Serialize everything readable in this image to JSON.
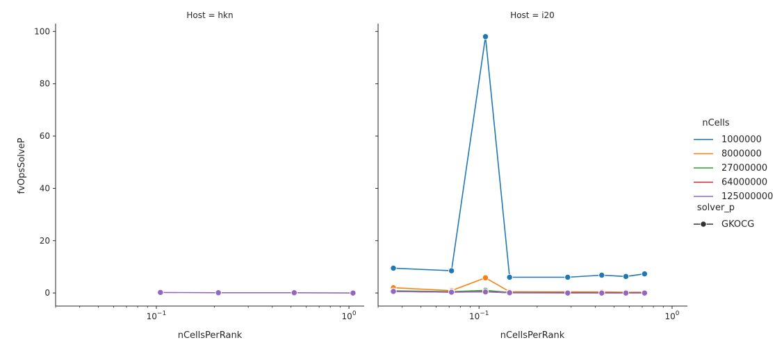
{
  "y_axis_label": "fvOpsSolveP",
  "legend": {
    "hue_title": "nCells",
    "style_title": "solver_p",
    "style_entry": "GKOCG"
  },
  "colors": {
    "1000000": "#1f77b4",
    "8000000": "#ff7f0e",
    "27000000": "#2ca02c",
    "64000000": "#d62728",
    "125000000": "#9467bd"
  },
  "chart_data": [
    {
      "type": "line",
      "title": "Host = hkn",
      "xlabel": "nCellsPerRank",
      "ylabel": "fvOpsSolveP",
      "x_scale": "log",
      "xlim": [
        0.03,
        1.2
      ],
      "ylim": [
        -5,
        103
      ],
      "x_ticks": [
        "10^-1",
        "10^0"
      ],
      "y_ticks": [
        0,
        20,
        40,
        60,
        80,
        100
      ],
      "series": [
        {
          "name": "125000000",
          "x": [
            0.105,
            0.21,
            0.52,
            1.05
          ],
          "y": [
            0.2,
            0.1,
            0.1,
            0.0
          ]
        }
      ]
    },
    {
      "type": "line",
      "title": "Host = i20",
      "xlabel": "nCellsPerRank",
      "ylabel": "fvOpsSolveP",
      "x_scale": "log",
      "xlim": [
        0.03,
        1.2
      ],
      "ylim": [
        -5,
        103
      ],
      "x_ticks": [
        "10^-1",
        "10^0"
      ],
      "y_ticks": [
        0,
        20,
        40,
        60,
        80,
        100
      ],
      "series": [
        {
          "name": "1000000",
          "x": [
            0.036,
            0.072,
            0.108,
            0.144,
            0.288,
            0.432,
            0.576,
            0.72
          ],
          "y": [
            9.5,
            8.5,
            98.0,
            6.0,
            6.0,
            6.8,
            6.3,
            7.3
          ]
        },
        {
          "name": "8000000",
          "x": [
            0.036,
            0.072,
            0.108,
            0.144,
            0.288,
            0.432,
            0.576,
            0.72
          ],
          "y": [
            2.0,
            0.9,
            5.8,
            0.5,
            0.4,
            0.4,
            0.3,
            0.3
          ]
        },
        {
          "name": "27000000",
          "x": [
            0.036,
            0.072,
            0.108,
            0.144,
            0.288,
            0.432,
            0.576,
            0.72
          ],
          "y": [
            0.8,
            0.5,
            1.0,
            0.2,
            0.2,
            0.1,
            0.1,
            0.1
          ]
        },
        {
          "name": "64000000",
          "x": [
            0.036,
            0.072,
            0.108,
            0.144,
            0.288,
            0.432,
            0.576,
            0.72
          ],
          "y": [
            0.6,
            0.3,
            0.5,
            0.1,
            0.1,
            0.0,
            0.0,
            0.0
          ]
        },
        {
          "name": "125000000",
          "x": [
            0.036,
            0.072,
            0.108,
            0.144,
            0.288,
            0.432,
            0.576,
            0.72
          ],
          "y": [
            0.6,
            0.3,
            0.4,
            0.1,
            0.0,
            0.0,
            0.0,
            0.0
          ]
        }
      ]
    }
  ]
}
